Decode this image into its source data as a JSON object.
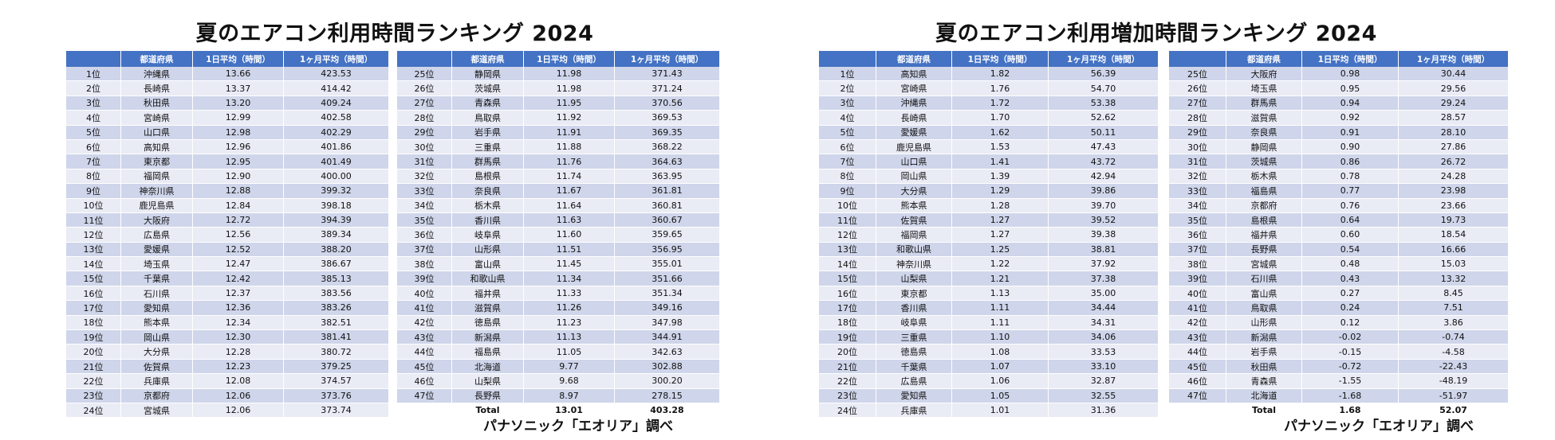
{
  "left": {
    "title": "夏のエアコン利用時間ランキング 2024",
    "headers": [
      "",
      "都道府県",
      "1日平均（時間）",
      "1ヶ月平均（時間）"
    ],
    "table1": [
      [
        "1位",
        "沖縄県",
        "13.66",
        "423.53"
      ],
      [
        "2位",
        "長崎県",
        "13.37",
        "414.42"
      ],
      [
        "3位",
        "秋田県",
        "13.20",
        "409.24"
      ],
      [
        "4位",
        "宮崎県",
        "12.99",
        "402.58"
      ],
      [
        "5位",
        "山口県",
        "12.98",
        "402.29"
      ],
      [
        "6位",
        "高知県",
        "12.96",
        "401.86"
      ],
      [
        "7位",
        "東京都",
        "12.95",
        "401.49"
      ],
      [
        "8位",
        "福岡県",
        "12.90",
        "400.00"
      ],
      [
        "9位",
        "神奈川県",
        "12.88",
        "399.32"
      ],
      [
        "10位",
        "鹿児島県",
        "12.84",
        "398.18"
      ],
      [
        "11位",
        "大阪府",
        "12.72",
        "394.39"
      ],
      [
        "12位",
        "広島県",
        "12.56",
        "389.34"
      ],
      [
        "13位",
        "愛媛県",
        "12.52",
        "388.20"
      ],
      [
        "14位",
        "埼玉県",
        "12.47",
        "386.67"
      ],
      [
        "15位",
        "千葉県",
        "12.42",
        "385.13"
      ],
      [
        "16位",
        "石川県",
        "12.37",
        "383.56"
      ],
      [
        "17位",
        "愛知県",
        "12.36",
        "383.26"
      ],
      [
        "18位",
        "熊本県",
        "12.34",
        "382.51"
      ],
      [
        "19位",
        "岡山県",
        "12.30",
        "381.41"
      ],
      [
        "20位",
        "大分県",
        "12.28",
        "380.72"
      ],
      [
        "21位",
        "佐賀県",
        "12.23",
        "379.25"
      ],
      [
        "22位",
        "兵庫県",
        "12.08",
        "374.57"
      ],
      [
        "23位",
        "京都府",
        "12.06",
        "373.76"
      ],
      [
        "24位",
        "宮城県",
        "12.06",
        "373.74"
      ]
    ],
    "table2": [
      [
        "25位",
        "静岡県",
        "11.98",
        "371.43"
      ],
      [
        "26位",
        "茨城県",
        "11.98",
        "371.24"
      ],
      [
        "27位",
        "青森県",
        "11.95",
        "370.56"
      ],
      [
        "28位",
        "鳥取県",
        "11.92",
        "369.53"
      ],
      [
        "29位",
        "岩手県",
        "11.91",
        "369.35"
      ],
      [
        "30位",
        "三重県",
        "11.88",
        "368.22"
      ],
      [
        "31位",
        "群馬県",
        "11.76",
        "364.63"
      ],
      [
        "32位",
        "島根県",
        "11.74",
        "363.95"
      ],
      [
        "33位",
        "奈良県",
        "11.67",
        "361.81"
      ],
      [
        "34位",
        "栃木県",
        "11.64",
        "360.81"
      ],
      [
        "35位",
        "香川県",
        "11.63",
        "360.67"
      ],
      [
        "36位",
        "岐阜県",
        "11.60",
        "359.65"
      ],
      [
        "37位",
        "山形県",
        "11.51",
        "356.95"
      ],
      [
        "38位",
        "富山県",
        "11.45",
        "355.01"
      ],
      [
        "39位",
        "和歌山県",
        "11.34",
        "351.66"
      ],
      [
        "40位",
        "福井県",
        "11.33",
        "351.34"
      ],
      [
        "41位",
        "滋賀県",
        "11.26",
        "349.16"
      ],
      [
        "42位",
        "徳島県",
        "11.23",
        "347.98"
      ],
      [
        "43位",
        "新潟県",
        "11.13",
        "344.91"
      ],
      [
        "44位",
        "福島県",
        "11.05",
        "342.63"
      ],
      [
        "45位",
        "北海道",
        "9.77",
        "302.88"
      ],
      [
        "46位",
        "山梨県",
        "9.68",
        "300.20"
      ],
      [
        "47位",
        "長野県",
        "8.97",
        "278.15"
      ]
    ],
    "total": [
      "",
      "Total",
      "13.01",
      "403.28"
    ],
    "credit": "パナソニック「エオリア」調べ"
  },
  "right": {
    "title": "夏のエアコン利用増加時間ランキング 2024",
    "headers": [
      "",
      "都道府県",
      "1日平均（時間）",
      "1ヶ月平均（時間）"
    ],
    "table1": [
      [
        "1位",
        "高知県",
        "1.82",
        "56.39"
      ],
      [
        "2位",
        "宮崎県",
        "1.76",
        "54.70"
      ],
      [
        "3位",
        "沖縄県",
        "1.72",
        "53.38"
      ],
      [
        "4位",
        "長崎県",
        "1.70",
        "52.62"
      ],
      [
        "5位",
        "愛媛県",
        "1.62",
        "50.11"
      ],
      [
        "6位",
        "鹿児島県",
        "1.53",
        "47.43"
      ],
      [
        "7位",
        "山口県",
        "1.41",
        "43.72"
      ],
      [
        "8位",
        "岡山県",
        "1.39",
        "42.94"
      ],
      [
        "9位",
        "大分県",
        "1.29",
        "39.86"
      ],
      [
        "10位",
        "熊本県",
        "1.28",
        "39.70"
      ],
      [
        "11位",
        "佐賀県",
        "1.27",
        "39.52"
      ],
      [
        "12位",
        "福岡県",
        "1.27",
        "39.38"
      ],
      [
        "13位",
        "和歌山県",
        "1.25",
        "38.81"
      ],
      [
        "14位",
        "神奈川県",
        "1.22",
        "37.92"
      ],
      [
        "15位",
        "山梨県",
        "1.21",
        "37.38"
      ],
      [
        "16位",
        "東京都",
        "1.13",
        "35.00"
      ],
      [
        "17位",
        "香川県",
        "1.11",
        "34.44"
      ],
      [
        "18位",
        "岐阜県",
        "1.11",
        "34.31"
      ],
      [
        "19位",
        "三重県",
        "1.10",
        "34.06"
      ],
      [
        "20位",
        "徳島県",
        "1.08",
        "33.53"
      ],
      [
        "21位",
        "千葉県",
        "1.07",
        "33.10"
      ],
      [
        "22位",
        "広島県",
        "1.06",
        "32.87"
      ],
      [
        "23位",
        "愛知県",
        "1.05",
        "32.55"
      ],
      [
        "24位",
        "兵庫県",
        "1.01",
        "31.36"
      ]
    ],
    "table2": [
      [
        "25位",
        "大阪府",
        "0.98",
        "30.44"
      ],
      [
        "26位",
        "埼玉県",
        "0.95",
        "29.56"
      ],
      [
        "27位",
        "群馬県",
        "0.94",
        "29.24"
      ],
      [
        "28位",
        "滋賀県",
        "0.92",
        "28.57"
      ],
      [
        "29位",
        "奈良県",
        "0.91",
        "28.10"
      ],
      [
        "30位",
        "静岡県",
        "0.90",
        "27.86"
      ],
      [
        "31位",
        "茨城県",
        "0.86",
        "26.72"
      ],
      [
        "32位",
        "栃木県",
        "0.78",
        "24.28"
      ],
      [
        "33位",
        "福島県",
        "0.77",
        "23.98"
      ],
      [
        "34位",
        "京都府",
        "0.76",
        "23.66"
      ],
      [
        "35位",
        "島根県",
        "0.64",
        "19.73"
      ],
      [
        "36位",
        "福井県",
        "0.60",
        "18.54"
      ],
      [
        "37位",
        "長野県",
        "0.54",
        "16.66"
      ],
      [
        "38位",
        "宮城県",
        "0.48",
        "15.03"
      ],
      [
        "39位",
        "石川県",
        "0.43",
        "13.32"
      ],
      [
        "40位",
        "富山県",
        "0.27",
        "8.45"
      ],
      [
        "41位",
        "鳥取県",
        "0.24",
        "7.51"
      ],
      [
        "42位",
        "山形県",
        "0.12",
        "3.86"
      ],
      [
        "43位",
        "新潟県",
        "-0.02",
        "-0.74"
      ],
      [
        "44位",
        "岩手県",
        "-0.15",
        "-4.58"
      ],
      [
        "45位",
        "秋田県",
        "-0.72",
        "-22.43"
      ],
      [
        "46位",
        "青森県",
        "-1.55",
        "-48.19"
      ],
      [
        "47位",
        "北海道",
        "-1.68",
        "-51.97"
      ]
    ],
    "total": [
      "",
      "Total",
      "1.68",
      "52.07"
    ],
    "credit": "パナソニック「エオリア」調べ"
  }
}
